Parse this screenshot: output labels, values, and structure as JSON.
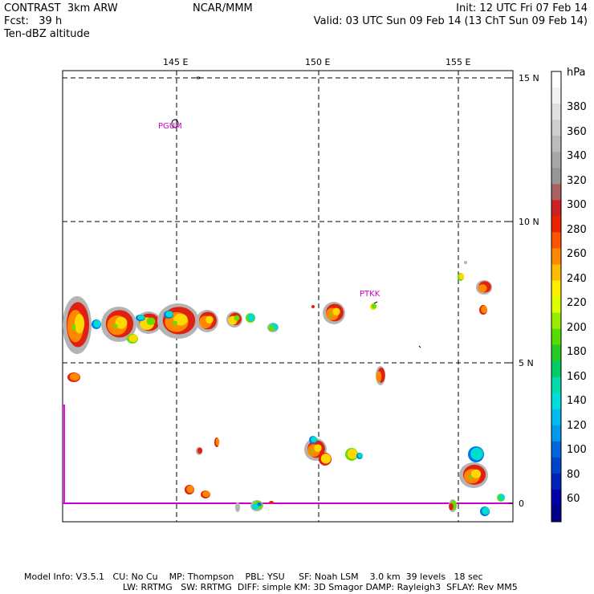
{
  "header": {
    "left_line1": "CONTRAST  3km ARW",
    "left_line2": "Fcst:   39 h",
    "left_line3": "Ten-dBZ altitude",
    "center": "NCAR/MMM",
    "right_line1": "Init: 12 UTC Fri 07 Feb 14",
    "right_line2": "Valid: 03 UTC Sun 09 Feb 14 (13 ChT Sun 09 Feb 14)"
  },
  "axes": {
    "lon_labels": [
      "145 E",
      "150 E",
      "155 E"
    ],
    "lat_labels": [
      "15 N",
      "10 N",
      "5 N",
      "0"
    ]
  },
  "places": [
    {
      "name": "PGUM",
      "color": "#cc00cc"
    },
    {
      "name": "PTKK",
      "color": "#cc00cc"
    }
  ],
  "colorbar": {
    "unit": "hPa",
    "labels": [
      "380",
      "360",
      "340",
      "320",
      "300",
      "280",
      "260",
      "240",
      "220",
      "200",
      "180",
      "160",
      "140",
      "120",
      "100",
      "80",
      "60"
    ],
    "colors": [
      "#ffffff",
      "#f2f2f2",
      "#e0e0e0",
      "#cfcfcf",
      "#bcbcbc",
      "#a8a8a8",
      "#969696",
      "#a86060",
      "#cc2222",
      "#ee2200",
      "#ff5500",
      "#ff8800",
      "#ffbb00",
      "#ffee00",
      "#ddff00",
      "#99ee00",
      "#55dd00",
      "#22cc22",
      "#00cc66",
      "#00ddaa",
      "#00dddd",
      "#00bbee",
      "#0099ee",
      "#0066dd",
      "#0044cc",
      "#0022bb",
      "#0000aa",
      "#000088"
    ]
  },
  "footer": {
    "line1": "Model Info: V3.5.1   CU: No Cu    MP: Thompson    PBL: YSU     SF: Noah LSM    3.0 km  39 levels   18 sec",
    "line2": "LW: RRTMG   SW: RRTMG  DIFF: simple KM: 3D Smagor DAMP: Rayleigh3  SFLAY: Rev MM5"
  }
}
